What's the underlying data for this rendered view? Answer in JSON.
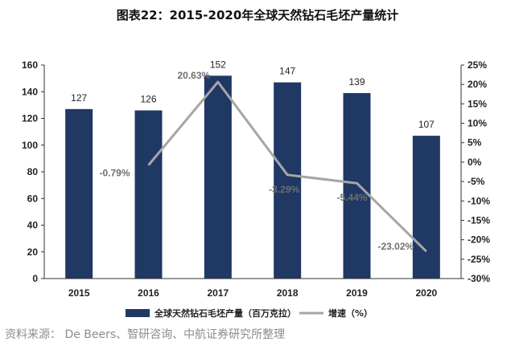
{
  "chart_data": {
    "type": "bar",
    "title": "图表22：2015-2020年全球天然钻石毛坯产量统计",
    "categories": [
      "2015",
      "2016",
      "2017",
      "2018",
      "2019",
      "2020"
    ],
    "series": [
      {
        "name": "全球天然钻石毛坯产量（百万克拉）",
        "type": "bar",
        "axis": "left",
        "values": [
          127,
          126,
          152,
          147,
          139,
          107
        ],
        "labels": [
          "127",
          "126",
          "152",
          "147",
          "139",
          "107"
        ],
        "color": "#1f3864"
      },
      {
        "name": "增速（%）",
        "type": "line",
        "axis": "right",
        "values": [
          null,
          -0.79,
          20.63,
          -3.29,
          -5.44,
          -23.02
        ],
        "labels": [
          "",
          "-0.79%",
          "20.63%",
          "-3.29%",
          "-5.44%",
          "-23.02%"
        ],
        "color": "#a6a6a6"
      }
    ],
    "ylim": [
      0,
      160
    ],
    "yticks": [
      "0",
      "20",
      "40",
      "60",
      "80",
      "100",
      "120",
      "140",
      "160"
    ],
    "y2lim": [
      -30,
      25
    ],
    "y2ticks": [
      "-30%",
      "-25%",
      "-20%",
      "-15%",
      "-10%",
      "-5%",
      "0%",
      "5%",
      "10%",
      "15%",
      "20%",
      "25%"
    ],
    "grid": false,
    "legend": "bottom-center"
  },
  "source": "资料来源： De Beers、智研咨询、中航证券研究所整理"
}
